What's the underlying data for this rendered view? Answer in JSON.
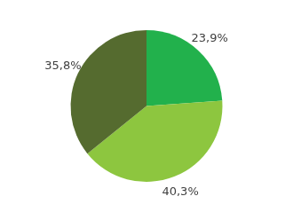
{
  "chart_data": {
    "type": "pie",
    "values": [
      23.9,
      40.3,
      35.8
    ],
    "value_labels": [
      "23,9%",
      "40,3%",
      "35,8%"
    ],
    "colors": [
      "#22b14c",
      "#8dc63f",
      "#556b2f"
    ],
    "data_labels": true
  }
}
